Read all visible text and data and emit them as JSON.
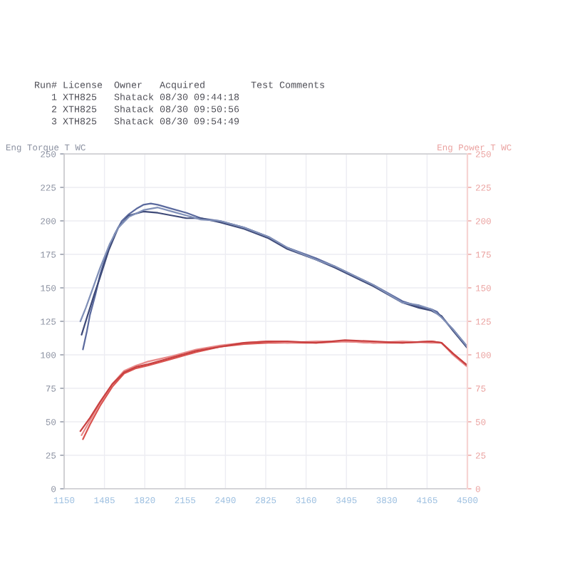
{
  "chart_data": {
    "type": "line",
    "annotations": [
      "Run# License  Owner   Acquired        Test Comments",
      "   1 XTH825   Shatack 08/30 09:44:18",
      "   2 XTH825   Shatack 08/30 09:50:56",
      "   3 XTH825   Shatack 08/30 09:54:49"
    ],
    "ylabel": "Eng Torque T WC",
    "y2label": "Eng Power T WC",
    "xlim": [
      1150,
      4500
    ],
    "xticks": [
      1150,
      1485,
      1820,
      2155,
      2490,
      2825,
      3160,
      3495,
      3830,
      4165,
      4500
    ],
    "ylim": [
      0,
      250
    ],
    "yticks": [
      0,
      25,
      50,
      75,
      100,
      125,
      150,
      175,
      200,
      225,
      250
    ],
    "y2lim": [
      0,
      250
    ],
    "y2ticks": [
      0,
      25,
      50,
      75,
      100,
      125,
      150,
      175,
      200,
      225,
      250
    ],
    "grid": true,
    "series": [
      {
        "color": "#5b6a9e",
        "x": [
          1306,
          1340,
          1365,
          1410,
          1449,
          1500,
          1569,
          1630,
          1688,
          1750,
          1808,
          1870,
          1928,
          2047,
          2167,
          2287,
          2442,
          2645,
          2849,
          3004,
          3244,
          3400,
          3722,
          3961,
          4100,
          4201,
          4250,
          4285,
          4380,
          4500
        ],
        "values": [
          104,
          118,
          130,
          145,
          160,
          175,
          190,
          200,
          205,
          209,
          212,
          213,
          212,
          209,
          206,
          202,
          200,
          195,
          188,
          180,
          172,
          166,
          152,
          140,
          136,
          134,
          132,
          128,
          119,
          106
        ]
      },
      {
        "color": "#3e4a78",
        "x": [
          1295,
          1340,
          1400,
          1449,
          1520,
          1600,
          1688,
          1808,
          1928,
          2047,
          2167,
          2287,
          2442,
          2645,
          2849,
          3004,
          3244,
          3400,
          3722,
          3961,
          4100,
          4201,
          4285,
          4380,
          4500
        ],
        "values": [
          115,
          128,
          145,
          158,
          178,
          195,
          204,
          207,
          206,
          204,
          202,
          202,
          199,
          194,
          187,
          179,
          171,
          165,
          151,
          139,
          135,
          133,
          129,
          118,
          105
        ]
      },
      {
        "color": "#8090b8",
        "x": [
          1285,
          1330,
          1390,
          1449,
          1530,
          1600,
          1688,
          1808,
          1928,
          2047,
          2167,
          2287,
          2442,
          2645,
          2849,
          3004,
          3244,
          3400,
          3722,
          3961,
          4100,
          4201,
          4285,
          4380,
          4500
        ],
        "values": [
          125,
          135,
          150,
          165,
          183,
          195,
          203,
          208,
          210,
          207,
          204,
          201,
          200,
          195,
          188,
          180,
          171,
          166,
          152,
          139,
          137,
          134,
          128,
          119,
          106
        ]
      },
      {
        "axis": "y2",
        "color": "#d9534f",
        "x": [
          1306,
          1365,
          1449,
          1549,
          1648,
          1748,
          1848,
          2047,
          2247,
          2446,
          2645,
          2845,
          3004,
          3244,
          3483,
          3722,
          3961,
          4201,
          4285,
          4380,
          4500
        ],
        "values": [
          37,
          48,
          62,
          76,
          86,
          90,
          92,
          97,
          102,
          106,
          108,
          109,
          109,
          109,
          110,
          109,
          109,
          110,
          109,
          101,
          92
        ]
      },
      {
        "axis": "y2",
        "color": "#e88a8a",
        "x": [
          1295,
          1365,
          1449,
          1549,
          1648,
          1748,
          1848,
          2047,
          2247,
          2446,
          2645,
          2845,
          3004,
          3244,
          3483,
          3722,
          3961,
          4201,
          4285,
          4380,
          4500
        ],
        "values": [
          40,
          51,
          64,
          78,
          88,
          92,
          95,
          99,
          104,
          107,
          109,
          110,
          109,
          110,
          110,
          109,
          110,
          109,
          109,
          100,
          91
        ]
      },
      {
        "axis": "y2",
        "color": "#c94040",
        "x": [
          1285,
          1365,
          1449,
          1549,
          1648,
          1748,
          1848,
          2047,
          2247,
          2446,
          2645,
          2845,
          3004,
          3244,
          3483,
          3722,
          3961,
          4201,
          4285,
          4380,
          4500
        ],
        "values": [
          43,
          53,
          65,
          78,
          87,
          91,
          93,
          98,
          103,
          106,
          109,
          110,
          110,
          109,
          111,
          110,
          109,
          110,
          109,
          101,
          92
        ]
      }
    ]
  }
}
